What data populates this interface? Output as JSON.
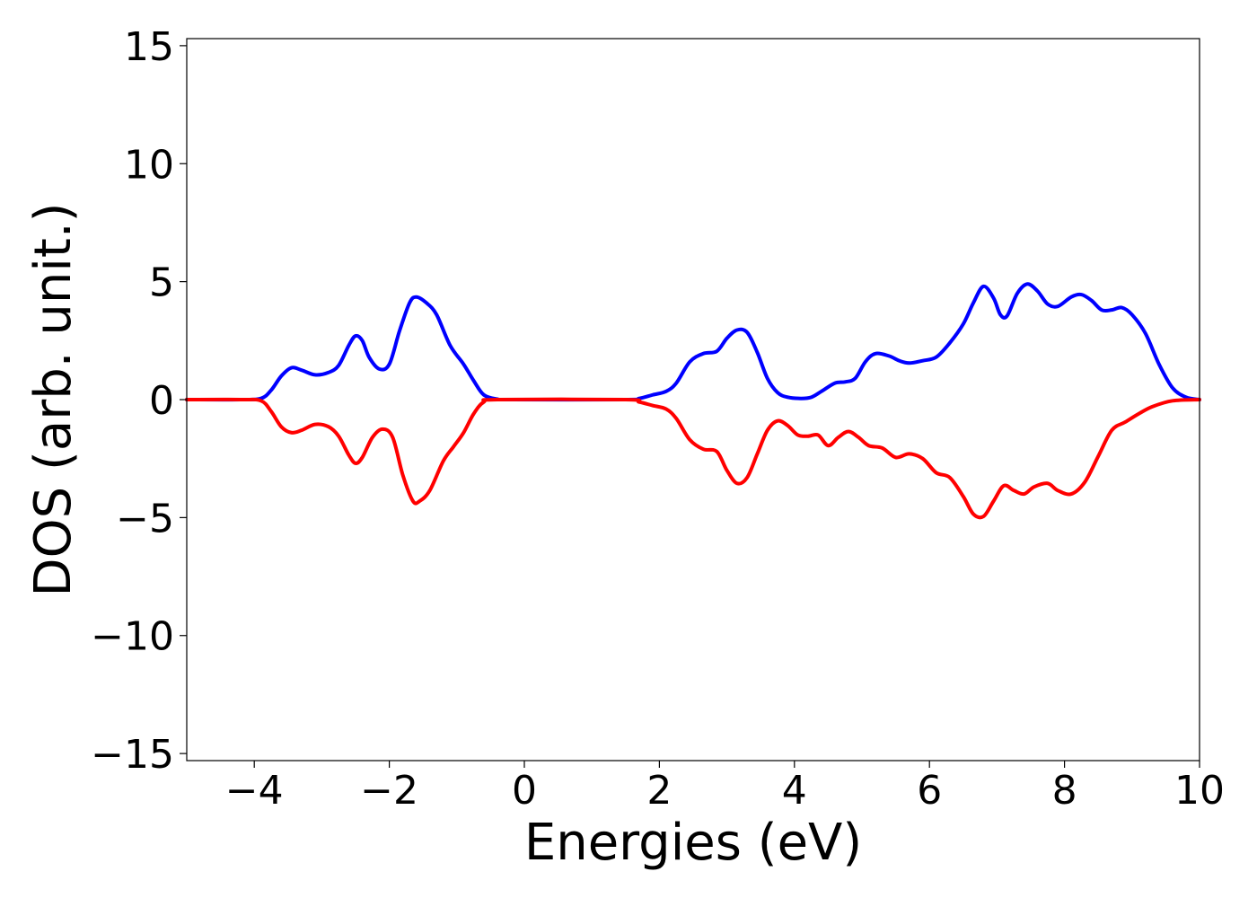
{
  "chart_data": {
    "type": "line",
    "title": "",
    "xlabel": "Energies (eV)",
    "ylabel": "DOS (arb. unit.)",
    "xlim": [
      -5,
      10
    ],
    "ylim": [
      -15.3,
      15.3
    ],
    "grid": false,
    "xticks": [
      -4,
      -2,
      0,
      2,
      4,
      6,
      8,
      10
    ],
    "xtick_labels": [
      "−4",
      "−2",
      "0",
      "2",
      "4",
      "6",
      "8",
      "10"
    ],
    "yticks": [
      15,
      10,
      5,
      0,
      -5,
      -10,
      -15
    ],
    "ytick_labels": [
      "15",
      "10",
      "5",
      "0",
      "−5",
      "−10",
      "−15"
    ],
    "series": [
      {
        "color": "#0000ff",
        "points": [
          [
            -5.0,
            0.0
          ],
          [
            -4.2,
            0.0
          ],
          [
            -3.9,
            0.05
          ],
          [
            -3.75,
            0.4
          ],
          [
            -3.6,
            1.0
          ],
          [
            -3.45,
            1.35
          ],
          [
            -3.3,
            1.25
          ],
          [
            -3.1,
            1.05
          ],
          [
            -2.9,
            1.15
          ],
          [
            -2.75,
            1.45
          ],
          [
            -2.6,
            2.3
          ],
          [
            -2.5,
            2.7
          ],
          [
            -2.4,
            2.5
          ],
          [
            -2.3,
            1.8
          ],
          [
            -2.15,
            1.3
          ],
          [
            -2.0,
            1.5
          ],
          [
            -1.85,
            2.9
          ],
          [
            -1.7,
            4.1
          ],
          [
            -1.6,
            4.35
          ],
          [
            -1.45,
            4.1
          ],
          [
            -1.3,
            3.6
          ],
          [
            -1.1,
            2.3
          ],
          [
            -0.9,
            1.5
          ],
          [
            -0.75,
            0.8
          ],
          [
            -0.6,
            0.2
          ],
          [
            -0.4,
            0.02
          ],
          [
            -0.2,
            0.0
          ],
          [
            1.5,
            0.0
          ],
          [
            1.7,
            0.05
          ],
          [
            1.9,
            0.2
          ],
          [
            2.1,
            0.35
          ],
          [
            2.25,
            0.7
          ],
          [
            2.45,
            1.6
          ],
          [
            2.65,
            1.95
          ],
          [
            2.85,
            2.05
          ],
          [
            3.0,
            2.6
          ],
          [
            3.15,
            2.95
          ],
          [
            3.3,
            2.85
          ],
          [
            3.45,
            2.0
          ],
          [
            3.6,
            0.9
          ],
          [
            3.75,
            0.3
          ],
          [
            3.9,
            0.1
          ],
          [
            4.1,
            0.05
          ],
          [
            4.25,
            0.1
          ],
          [
            4.4,
            0.35
          ],
          [
            4.6,
            0.7
          ],
          [
            4.75,
            0.75
          ],
          [
            4.9,
            0.9
          ],
          [
            5.05,
            1.6
          ],
          [
            5.2,
            1.95
          ],
          [
            5.4,
            1.85
          ],
          [
            5.55,
            1.65
          ],
          [
            5.7,
            1.55
          ],
          [
            5.9,
            1.65
          ],
          [
            6.1,
            1.8
          ],
          [
            6.3,
            2.4
          ],
          [
            6.5,
            3.2
          ],
          [
            6.65,
            4.1
          ],
          [
            6.8,
            4.8
          ],
          [
            6.95,
            4.3
          ],
          [
            7.05,
            3.6
          ],
          [
            7.15,
            3.55
          ],
          [
            7.3,
            4.5
          ],
          [
            7.45,
            4.9
          ],
          [
            7.6,
            4.6
          ],
          [
            7.75,
            4.05
          ],
          [
            7.9,
            3.95
          ],
          [
            8.1,
            4.35
          ],
          [
            8.25,
            4.45
          ],
          [
            8.4,
            4.2
          ],
          [
            8.55,
            3.8
          ],
          [
            8.7,
            3.8
          ],
          [
            8.85,
            3.9
          ],
          [
            9.0,
            3.6
          ],
          [
            9.2,
            2.8
          ],
          [
            9.4,
            1.5
          ],
          [
            9.6,
            0.5
          ],
          [
            9.8,
            0.1
          ],
          [
            10.0,
            0.0
          ]
        ]
      },
      {
        "color": "#ff0000",
        "points": [
          [
            -5.0,
            0.0
          ],
          [
            -4.2,
            0.0
          ],
          [
            -3.9,
            -0.05
          ],
          [
            -3.75,
            -0.5
          ],
          [
            -3.6,
            -1.15
          ],
          [
            -3.45,
            -1.4
          ],
          [
            -3.3,
            -1.3
          ],
          [
            -3.1,
            -1.05
          ],
          [
            -2.9,
            -1.15
          ],
          [
            -2.75,
            -1.55
          ],
          [
            -2.6,
            -2.35
          ],
          [
            -2.5,
            -2.7
          ],
          [
            -2.4,
            -2.45
          ],
          [
            -2.25,
            -1.6
          ],
          [
            -2.1,
            -1.25
          ],
          [
            -1.95,
            -1.6
          ],
          [
            -1.8,
            -3.2
          ],
          [
            -1.65,
            -4.3
          ],
          [
            -1.55,
            -4.3
          ],
          [
            -1.4,
            -3.85
          ],
          [
            -1.2,
            -2.6
          ],
          [
            -1.05,
            -2.0
          ],
          [
            -0.9,
            -1.4
          ],
          [
            -0.75,
            -0.6
          ],
          [
            -0.6,
            -0.1
          ],
          [
            -0.4,
            0.0
          ],
          [
            1.5,
            0.0
          ],
          [
            1.7,
            -0.1
          ],
          [
            1.9,
            -0.25
          ],
          [
            2.1,
            -0.4
          ],
          [
            2.25,
            -0.8
          ],
          [
            2.45,
            -1.7
          ],
          [
            2.65,
            -2.1
          ],
          [
            2.85,
            -2.2
          ],
          [
            3.0,
            -3.0
          ],
          [
            3.15,
            -3.55
          ],
          [
            3.3,
            -3.3
          ],
          [
            3.45,
            -2.3
          ],
          [
            3.6,
            -1.3
          ],
          [
            3.75,
            -0.9
          ],
          [
            3.9,
            -1.1
          ],
          [
            4.05,
            -1.5
          ],
          [
            4.2,
            -1.55
          ],
          [
            4.35,
            -1.5
          ],
          [
            4.5,
            -1.95
          ],
          [
            4.65,
            -1.6
          ],
          [
            4.8,
            -1.35
          ],
          [
            4.95,
            -1.6
          ],
          [
            5.1,
            -1.95
          ],
          [
            5.3,
            -2.05
          ],
          [
            5.5,
            -2.45
          ],
          [
            5.7,
            -2.3
          ],
          [
            5.9,
            -2.5
          ],
          [
            6.1,
            -3.1
          ],
          [
            6.3,
            -3.3
          ],
          [
            6.5,
            -4.1
          ],
          [
            6.65,
            -4.85
          ],
          [
            6.8,
            -4.95
          ],
          [
            6.95,
            -4.3
          ],
          [
            7.1,
            -3.65
          ],
          [
            7.25,
            -3.85
          ],
          [
            7.4,
            -4.0
          ],
          [
            7.55,
            -3.7
          ],
          [
            7.75,
            -3.55
          ],
          [
            7.9,
            -3.85
          ],
          [
            8.1,
            -4.0
          ],
          [
            8.3,
            -3.5
          ],
          [
            8.5,
            -2.4
          ],
          [
            8.7,
            -1.3
          ],
          [
            8.9,
            -0.95
          ],
          [
            9.1,
            -0.6
          ],
          [
            9.3,
            -0.3
          ],
          [
            9.6,
            -0.05
          ],
          [
            10.0,
            0.0
          ]
        ]
      }
    ]
  }
}
